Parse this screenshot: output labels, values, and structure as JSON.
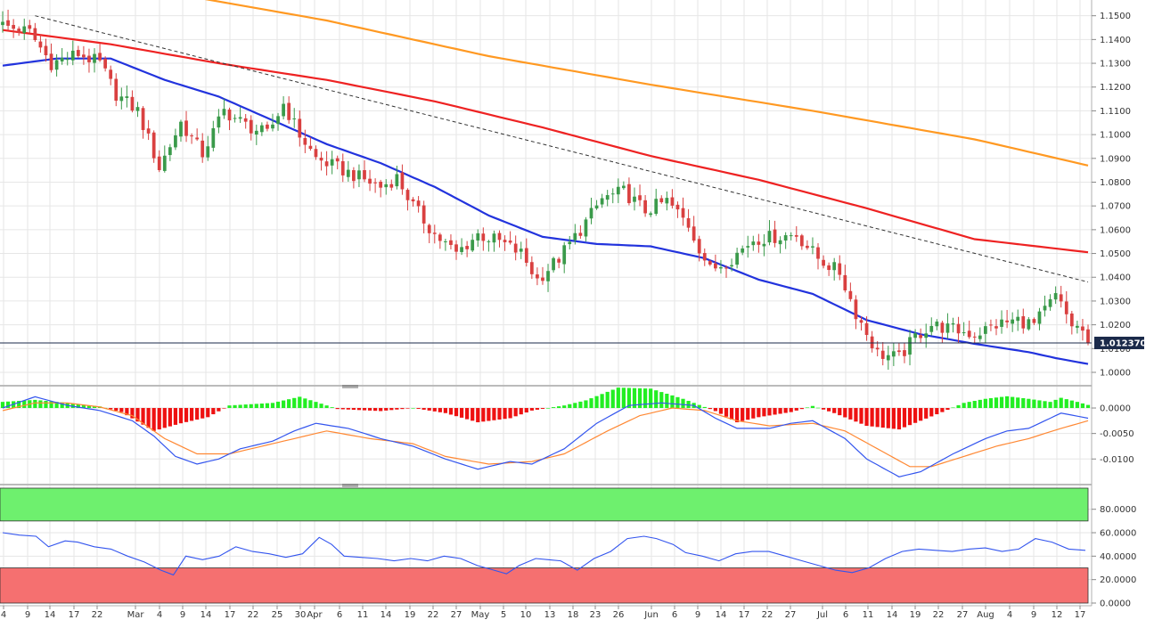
{
  "colors": {
    "up_candle": "#3a9a4a",
    "down_candle": "#d94040",
    "sma_fast": "#2233dd",
    "sma_mid": "#ee2222",
    "sma_slow": "#ff9922",
    "trendline": "#333333",
    "price_line": "#1b2a4a",
    "hist_pos": "#22ee22",
    "hist_neg": "#ee1111",
    "macd_line": "#3355ee",
    "signal_line": "#ff8833",
    "rsi_line": "#3355ee",
    "overbought_zone": "#6ef06e",
    "oversold_zone": "#f57070"
  },
  "chart_data": [
    {
      "type": "candlestick",
      "panel": "price",
      "ylim": [
        0.9955,
        1.1555
      ],
      "yticks": [
        "1.1500",
        "1.1400",
        "1.1300",
        "1.1200",
        "1.1100",
        "1.1000",
        "1.0900",
        "1.0800",
        "1.0700",
        "1.0600",
        "1.0500",
        "1.0400",
        "1.0300",
        "1.0200",
        "1.0100",
        "1.0000"
      ],
      "current_price": "1.012370",
      "x_labels": [
        "4",
        "9",
        "14",
        "17",
        "22",
        "Mar",
        "4",
        "9",
        "14",
        "17",
        "22",
        "25",
        "30",
        "Apr",
        "6",
        "11",
        "14",
        "19",
        "22",
        "27",
        "May",
        "5",
        "10",
        "13",
        "18",
        "23",
        "26",
        "Jun",
        "6",
        "9",
        "14",
        "17",
        "22",
        "27",
        "Jul",
        "6",
        "11",
        "14",
        "19",
        "22",
        "27",
        "Aug",
        "4",
        "9",
        "12",
        "17"
      ],
      "ohlc_anchors": [
        [
          0,
          1.146
        ],
        [
          5,
          1.143
        ],
        [
          9,
          1.13
        ],
        [
          14,
          1.134
        ],
        [
          18,
          1.13
        ],
        [
          21,
          1.117
        ],
        [
          25,
          1.11
        ],
        [
          29,
          1.086
        ],
        [
          33,
          1.105
        ],
        [
          37,
          1.092
        ],
        [
          41,
          1.11
        ],
        [
          45,
          1.104
        ],
        [
          49,
          1.1
        ],
        [
          52,
          1.113
        ],
        [
          55,
          1.1
        ],
        [
          58,
          1.09
        ],
        [
          62,
          1.086
        ],
        [
          66,
          1.082
        ],
        [
          70,
          1.078
        ],
        [
          73,
          1.082
        ],
        [
          76,
          1.07
        ],
        [
          80,
          1.058
        ],
        [
          84,
          1.05
        ],
        [
          88,
          1.058
        ],
        [
          92,
          1.055
        ],
        [
          96,
          1.05
        ],
        [
          99,
          1.039
        ],
        [
          103,
          1.048
        ],
        [
          107,
          1.06
        ],
        [
          111,
          1.073
        ],
        [
          115,
          1.076
        ],
        [
          119,
          1.068
        ],
        [
          123,
          1.072
        ],
        [
          127,
          1.062
        ],
        [
          131,
          1.043
        ],
        [
          135,
          1.048
        ],
        [
          139,
          1.056
        ],
        [
          143,
          1.057
        ],
        [
          147,
          1.058
        ],
        [
          151,
          1.048
        ],
        [
          155,
          1.042
        ],
        [
          158,
          1.025
        ],
        [
          162,
          1.008
        ],
        [
          166,
          1.006
        ],
        [
          169,
          1.015
        ],
        [
          172,
          1.02
        ],
        [
          176,
          1.018
        ],
        [
          180,
          1.016
        ],
        [
          184,
          1.02
        ],
        [
          188,
          1.022
        ],
        [
          191,
          1.02
        ],
        [
          195,
          1.032
        ],
        [
          198,
          1.02
        ],
        [
          200,
          1.0175
        ],
        [
          201,
          1.0124
        ]
      ],
      "sma_fast": [
        [
          0,
          1.129
        ],
        [
          10,
          1.132
        ],
        [
          20,
          1.132
        ],
        [
          30,
          1.123
        ],
        [
          40,
          1.116
        ],
        [
          50,
          1.106
        ],
        [
          60,
          1.096
        ],
        [
          70,
          1.088
        ],
        [
          80,
          1.078
        ],
        [
          90,
          1.066
        ],
        [
          100,
          1.057
        ],
        [
          110,
          1.054
        ],
        [
          120,
          1.053
        ],
        [
          130,
          1.048
        ],
        [
          140,
          1.039
        ],
        [
          150,
          1.033
        ],
        [
          160,
          1.022
        ],
        [
          170,
          1.016
        ],
        [
          180,
          1.012
        ],
        [
          190,
          1.0085
        ],
        [
          195,
          1.006
        ],
        [
          201,
          1.0035
        ]
      ],
      "sma_mid": [
        [
          0,
          1.144
        ],
        [
          20,
          1.138
        ],
        [
          40,
          1.13
        ],
        [
          60,
          1.123
        ],
        [
          80,
          1.114
        ],
        [
          100,
          1.103
        ],
        [
          120,
          1.091
        ],
        [
          140,
          1.081
        ],
        [
          160,
          1.069
        ],
        [
          180,
          1.056
        ],
        [
          201,
          1.0505
        ]
      ],
      "sma_slow": [
        [
          30,
          1.16
        ],
        [
          60,
          1.148
        ],
        [
          90,
          1.133
        ],
        [
          120,
          1.121
        ],
        [
          150,
          1.11
        ],
        [
          180,
          1.098
        ],
        [
          201,
          1.087
        ]
      ],
      "trendline": [
        [
          6,
          1.15
        ],
        [
          201,
          1.038
        ]
      ]
    },
    {
      "type": "macd",
      "panel": "macd",
      "ylim": [
        -0.0145,
        0.0035
      ],
      "yticks": [
        "0.0000",
        "-0.0050",
        "-0.0100"
      ],
      "histogram": [
        [
          0,
          0.0012
        ],
        [
          6,
          0.0016
        ],
        [
          12,
          0.001
        ],
        [
          18,
          0.0003
        ],
        [
          22,
          -0.0008
        ],
        [
          28,
          -0.0045
        ],
        [
          33,
          -0.003
        ],
        [
          38,
          -0.0018
        ],
        [
          42,
          0.0005
        ],
        [
          50,
          0.001
        ],
        [
          55,
          0.0022
        ],
        [
          58,
          0.0012
        ],
        [
          62,
          -0.0002
        ],
        [
          70,
          -0.0006
        ],
        [
          76,
          0.0
        ],
        [
          82,
          -0.001
        ],
        [
          88,
          -0.0028
        ],
        [
          94,
          -0.002
        ],
        [
          98,
          -0.0005
        ],
        [
          104,
          0.0005
        ],
        [
          108,
          0.0015
        ],
        [
          114,
          0.004
        ],
        [
          120,
          0.0038
        ],
        [
          126,
          0.0018
        ],
        [
          132,
          -0.0006
        ],
        [
          136,
          -0.0028
        ],
        [
          140,
          -0.0018
        ],
        [
          146,
          -0.0008
        ],
        [
          150,
          0.0004
        ],
        [
          154,
          -0.001
        ],
        [
          160,
          -0.0035
        ],
        [
          166,
          -0.0042
        ],
        [
          170,
          -0.0025
        ],
        [
          174,
          -0.0008
        ],
        [
          178,
          0.001
        ],
        [
          182,
          0.0018
        ],
        [
          186,
          0.0023
        ],
        [
          190,
          0.0018
        ],
        [
          194,
          0.0012
        ],
        [
          196,
          0.002
        ],
        [
          199,
          0.0012
        ],
        [
          201,
          0.0006
        ]
      ],
      "macd": [
        [
          0,
          0.0
        ],
        [
          6,
          0.0022
        ],
        [
          12,
          0.0005
        ],
        [
          18,
          -0.0005
        ],
        [
          24,
          -0.0025
        ],
        [
          28,
          -0.0055
        ],
        [
          32,
          -0.0095
        ],
        [
          36,
          -0.011
        ],
        [
          40,
          -0.01
        ],
        [
          44,
          -0.008
        ],
        [
          50,
          -0.0065
        ],
        [
          54,
          -0.0045
        ],
        [
          58,
          -0.003
        ],
        [
          64,
          -0.004
        ],
        [
          70,
          -0.006
        ],
        [
          76,
          -0.0075
        ],
        [
          82,
          -0.01
        ],
        [
          88,
          -0.012
        ],
        [
          94,
          -0.0105
        ],
        [
          98,
          -0.011
        ],
        [
          104,
          -0.008
        ],
        [
          110,
          -0.003
        ],
        [
          116,
          0.0005
        ],
        [
          122,
          0.001
        ],
        [
          128,
          0.0005
        ],
        [
          132,
          -0.002
        ],
        [
          136,
          -0.004
        ],
        [
          142,
          -0.004
        ],
        [
          146,
          -0.003
        ],
        [
          150,
          -0.0025
        ],
        [
          156,
          -0.006
        ],
        [
          160,
          -0.01
        ],
        [
          166,
          -0.0135
        ],
        [
          170,
          -0.0125
        ],
        [
          176,
          -0.009
        ],
        [
          182,
          -0.006
        ],
        [
          186,
          -0.0045
        ],
        [
          190,
          -0.004
        ],
        [
          196,
          -0.001
        ],
        [
          201,
          -0.002
        ]
      ],
      "signal": [
        [
          0,
          -0.0005
        ],
        [
          6,
          0.001
        ],
        [
          12,
          0.001
        ],
        [
          18,
          0.0002
        ],
        [
          24,
          -0.0015
        ],
        [
          30,
          -0.006
        ],
        [
          36,
          -0.009
        ],
        [
          42,
          -0.009
        ],
        [
          48,
          -0.0075
        ],
        [
          54,
          -0.006
        ],
        [
          60,
          -0.0045
        ],
        [
          68,
          -0.006
        ],
        [
          76,
          -0.007
        ],
        [
          82,
          -0.0095
        ],
        [
          90,
          -0.011
        ],
        [
          98,
          -0.0105
        ],
        [
          104,
          -0.009
        ],
        [
          112,
          -0.0045
        ],
        [
          118,
          -0.0015
        ],
        [
          124,
          0.0
        ],
        [
          130,
          -0.0005
        ],
        [
          136,
          -0.0025
        ],
        [
          142,
          -0.0035
        ],
        [
          150,
          -0.003
        ],
        [
          156,
          -0.0045
        ],
        [
          162,
          -0.008
        ],
        [
          168,
          -0.0115
        ],
        [
          172,
          -0.0115
        ],
        [
          178,
          -0.0095
        ],
        [
          184,
          -0.0075
        ],
        [
          190,
          -0.006
        ],
        [
          196,
          -0.004
        ],
        [
          201,
          -0.0025
        ]
      ]
    },
    {
      "type": "rsi",
      "panel": "rsi",
      "ylim": [
        0,
        98
      ],
      "yticks": [
        "80.0000",
        "60.0000",
        "40.0000",
        "20.0000",
        "0.0000"
      ],
      "overbought": 70,
      "oversold": 30,
      "values": [
        [
          0,
          60
        ],
        [
          4,
          58
        ],
        [
          8,
          57
        ],
        [
          11,
          48
        ],
        [
          15,
          53
        ],
        [
          18,
          52
        ],
        [
          22,
          48
        ],
        [
          26,
          46
        ],
        [
          30,
          40
        ],
        [
          34,
          35
        ],
        [
          38,
          28
        ],
        [
          41,
          24
        ],
        [
          44,
          40
        ],
        [
          48,
          37
        ],
        [
          52,
          40
        ],
        [
          56,
          48
        ],
        [
          60,
          44
        ],
        [
          64,
          42
        ],
        [
          68,
          39
        ],
        [
          72,
          42
        ],
        [
          76,
          56
        ],
        [
          79,
          50
        ],
        [
          82,
          40
        ],
        [
          86,
          39
        ],
        [
          90,
          38
        ],
        [
          94,
          36
        ],
        [
          98,
          38
        ],
        [
          102,
          36
        ],
        [
          106,
          40
        ],
        [
          110,
          38
        ],
        [
          114,
          32
        ],
        [
          118,
          28
        ],
        [
          121,
          25
        ],
        [
          124,
          32
        ],
        [
          128,
          38
        ],
        [
          131,
          37
        ],
        [
          134,
          36
        ],
        [
          138,
          28
        ],
        [
          142,
          38
        ],
        [
          146,
          44
        ],
        [
          150,
          55
        ],
        [
          154,
          57
        ],
        [
          157,
          55
        ],
        [
          161,
          50
        ],
        [
          164,
          43
        ],
        [
          168,
          40
        ],
        [
          172,
          36
        ],
        [
          176,
          42
        ],
        [
          180,
          44
        ],
        [
          184,
          44
        ],
        [
          188,
          40
        ],
        [
          192,
          36
        ],
        [
          196,
          32
        ],
        [
          200,
          28
        ],
        [
          204,
          26
        ],
        [
          208,
          30
        ],
        [
          212,
          38
        ],
        [
          216,
          44
        ],
        [
          220,
          46
        ],
        [
          224,
          45
        ],
        [
          228,
          44
        ],
        [
          232,
          46
        ],
        [
          236,
          47
        ],
        [
          240,
          44
        ],
        [
          244,
          46
        ],
        [
          248,
          55
        ],
        [
          252,
          52
        ],
        [
          256,
          46
        ],
        [
          260,
          45
        ]
      ]
    }
  ]
}
